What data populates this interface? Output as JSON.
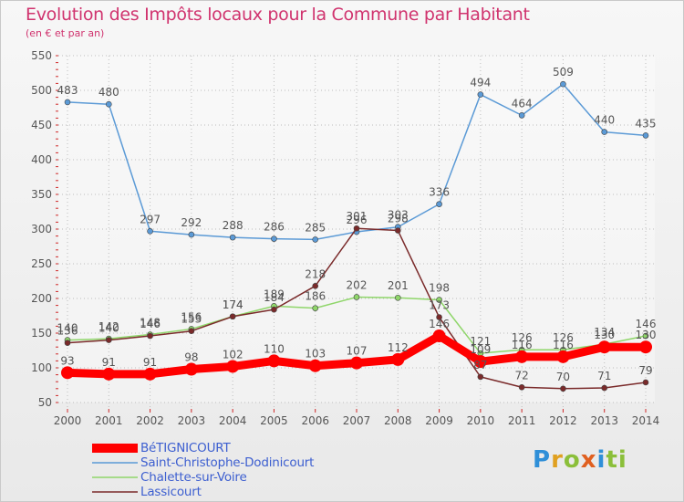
{
  "chart_data": {
    "type": "line",
    "title": "Evolution des Impôts locaux pour la Commune par Habitant",
    "subtitle": "(en € et par an)",
    "x": [
      "2000",
      "2001",
      "2002",
      "2003",
      "2004",
      "2005",
      "2006",
      "2007",
      "2008",
      "2009",
      "2010",
      "2011",
      "2012",
      "2013",
      "2014"
    ],
    "ylim": [
      50,
      550
    ],
    "yticks": [
      "50",
      "100",
      "150",
      "200",
      "250",
      "300",
      "350",
      "400",
      "450",
      "500",
      "550"
    ],
    "grid": true,
    "legend_position": "bottom-left",
    "series": [
      {
        "name": "BéTIGNICOURT",
        "color": "#ff0000",
        "values": [
          93,
          91,
          91,
          98,
          102,
          110,
          103,
          107,
          112,
          146,
          109,
          116,
          116,
          130,
          130
        ],
        "labels": [
          "93",
          "91",
          "91",
          "98",
          "102",
          "110",
          "103",
          "107",
          "112",
          "146",
          "109",
          "116",
          "116",
          "130",
          "130"
        ]
      },
      {
        "name": "Saint-Christophe-Dodinicourt",
        "color": "#5b9ad6",
        "values": [
          483,
          480,
          297,
          292,
          288,
          286,
          285,
          296,
          303,
          336,
          494,
          464,
          509,
          440,
          435
        ],
        "labels": [
          "483",
          "480",
          "297",
          "292",
          "288",
          "286",
          "285",
          "296",
          "303",
          "336",
          "494",
          "464",
          "509",
          "440",
          "435"
        ]
      },
      {
        "name": "Chalette-sur-Voire",
        "color": "#8fd66a",
        "values": [
          140,
          142,
          148,
          156,
          174,
          189,
          186,
          202,
          201,
          198,
          121,
          126,
          126,
          134,
          146
        ],
        "labels": [
          "140",
          "142",
          "148",
          "156",
          "174",
          "189",
          "186",
          "202",
          "201",
          "198",
          "121",
          "126",
          "126",
          "134",
          "146"
        ]
      },
      {
        "name": "Lassicourt",
        "color": "#7a2a2a",
        "values": [
          136,
          140,
          146,
          153,
          174,
          184,
          218,
          301,
          298,
          173,
          87,
          72,
          70,
          71,
          79
        ],
        "labels": [
          "136",
          "140",
          "146",
          "153",
          "174",
          "184",
          "218",
          "301",
          "298",
          "173",
          "87",
          "72",
          "70",
          "71",
          "79"
        ]
      }
    ]
  },
  "brand": {
    "letters": [
      "P",
      "r",
      "o",
      "x",
      "i",
      "ti"
    ]
  }
}
